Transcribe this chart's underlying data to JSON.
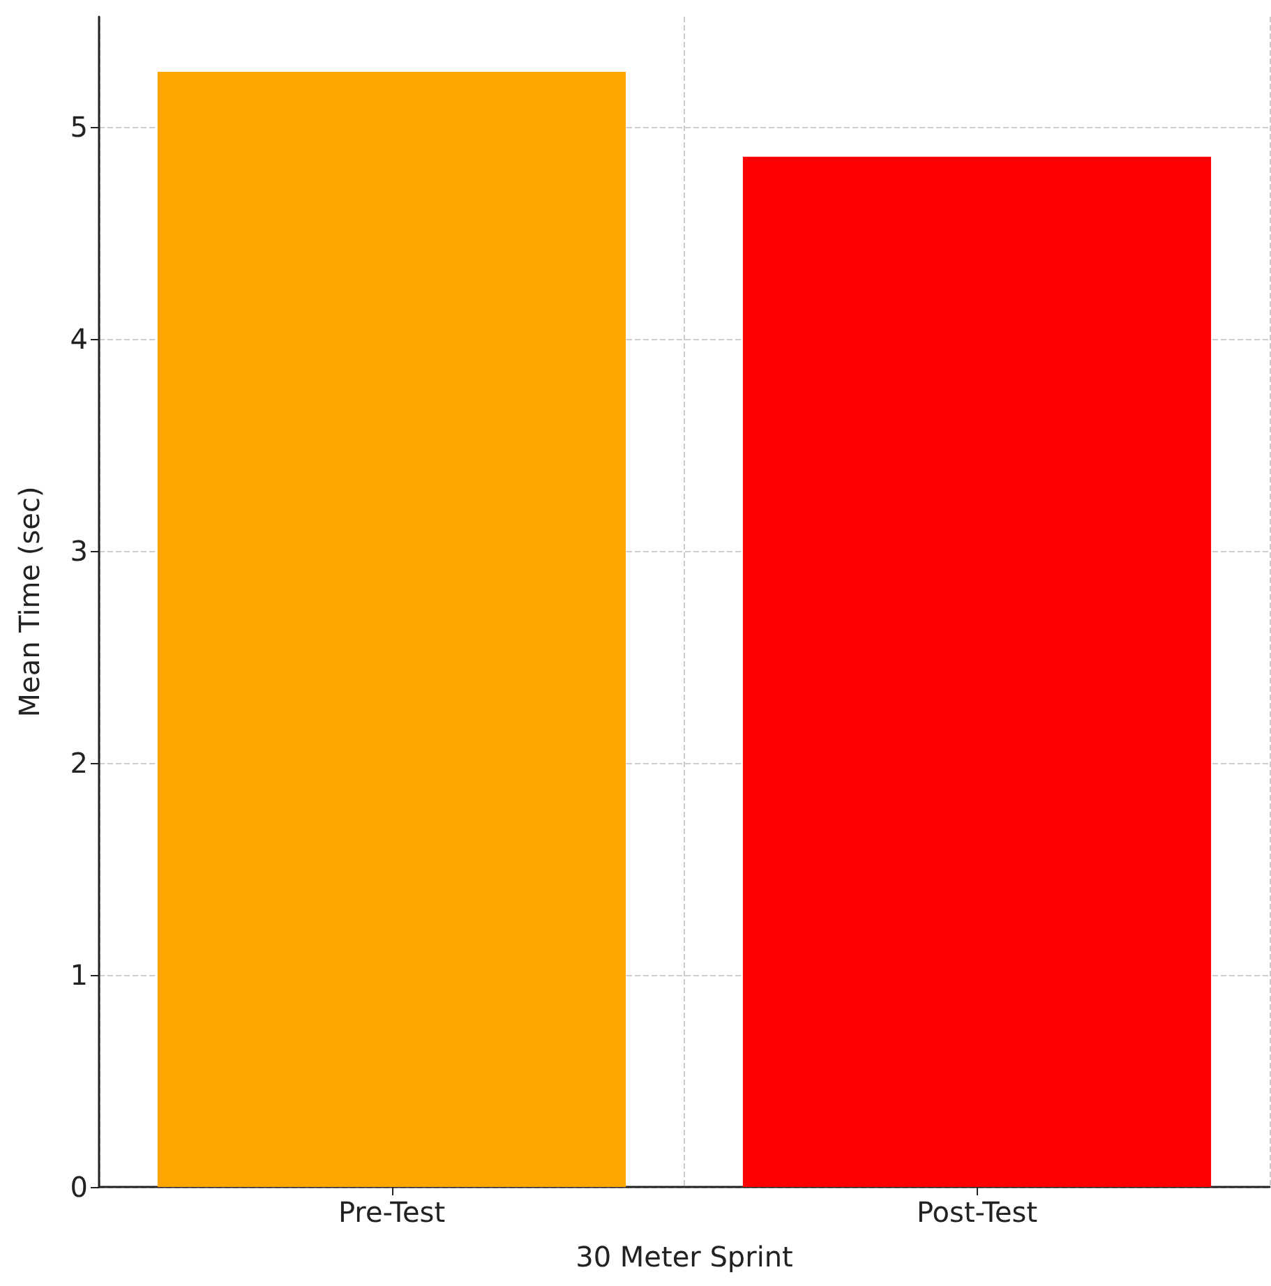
{
  "chart_data": {
    "type": "bar",
    "xlabel": "30 Meter Sprint",
    "ylabel": "Mean Time (sec)",
    "categories": [
      "Pre-Test",
      "Post-Test"
    ],
    "values": [
      5.26,
      4.86
    ],
    "colors": [
      "#ffa500",
      "#ff0000"
    ],
    "ylim": [
      0,
      5.52
    ],
    "yticks": [
      0,
      1,
      2,
      3,
      4,
      5
    ],
    "grid": true
  }
}
